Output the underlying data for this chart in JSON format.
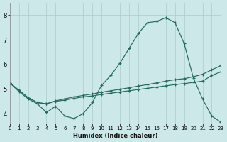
{
  "xlabel": "Humidex (Indice chaleur)",
  "bg_color": "#cce8e8",
  "grid_color": "#aacccc",
  "line_color": "#236b5f",
  "xlim": [
    0,
    23
  ],
  "ylim": [
    3.6,
    8.5
  ],
  "yticks": [
    4,
    5,
    6,
    7,
    8
  ],
  "xticks": [
    0,
    1,
    2,
    3,
    4,
    5,
    6,
    7,
    8,
    9,
    10,
    11,
    12,
    13,
    14,
    15,
    16,
    17,
    18,
    19,
    20,
    21,
    22,
    23
  ],
  "line1_x": [
    0,
    1,
    2,
    3,
    4,
    5,
    6,
    7,
    8,
    9,
    10,
    11,
    12,
    13,
    14,
    15,
    16,
    17,
    18,
    19,
    20,
    21,
    22,
    23
  ],
  "line1_y": [
    5.25,
    4.9,
    4.6,
    4.4,
    4.05,
    4.3,
    3.9,
    3.8,
    4.0,
    4.45,
    5.15,
    5.55,
    6.05,
    6.65,
    7.25,
    7.7,
    7.75,
    7.9,
    7.7,
    6.85,
    5.45,
    4.6,
    3.9,
    3.65
  ],
  "line2_x": [
    0,
    1,
    2,
    3,
    4,
    5,
    6,
    7,
    8,
    9,
    10,
    11,
    12,
    13,
    14,
    15,
    16,
    17,
    18,
    19,
    20,
    21,
    22,
    23
  ],
  "line2_y": [
    5.25,
    4.95,
    4.65,
    4.45,
    4.4,
    4.5,
    4.55,
    4.62,
    4.68,
    4.72,
    4.78,
    4.83,
    4.88,
    4.93,
    4.98,
    5.03,
    5.08,
    5.13,
    5.18,
    5.22,
    5.27,
    5.32,
    5.55,
    5.7
  ],
  "line3_x": [
    0,
    1,
    2,
    3,
    4,
    5,
    6,
    7,
    8,
    9,
    10,
    11,
    12,
    13,
    14,
    15,
    16,
    17,
    18,
    19,
    20,
    21,
    22,
    23
  ],
  "line3_y": [
    5.25,
    4.95,
    4.65,
    4.45,
    4.4,
    4.52,
    4.6,
    4.68,
    4.74,
    4.8,
    4.87,
    4.93,
    4.99,
    5.05,
    5.12,
    5.18,
    5.25,
    5.32,
    5.38,
    5.42,
    5.5,
    5.6,
    5.78,
    5.95
  ]
}
